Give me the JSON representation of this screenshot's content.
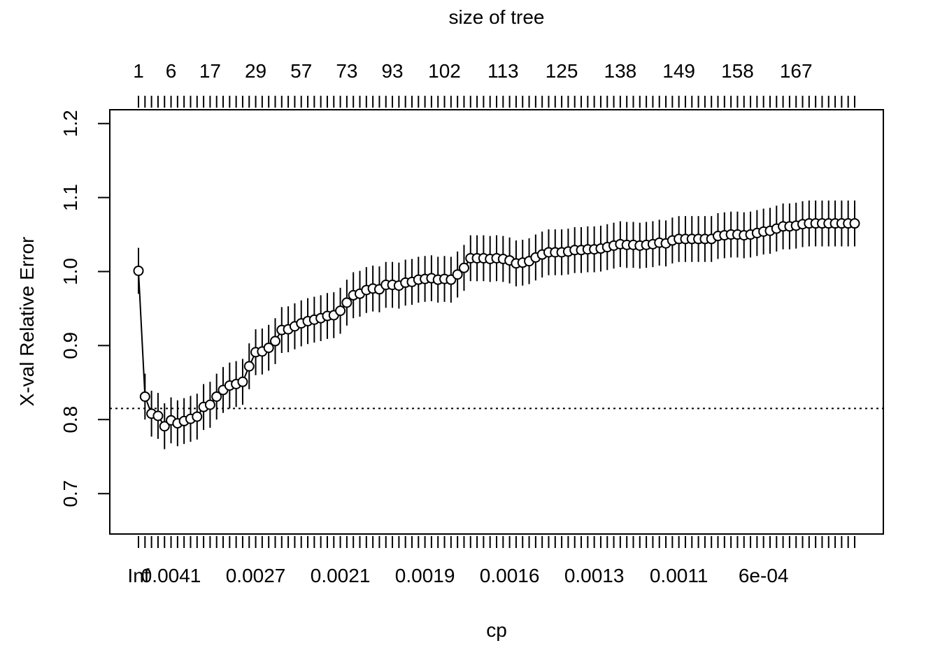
{
  "chart_data": {
    "type": "scatter",
    "title": "size of tree",
    "xlabel": "cp",
    "ylabel": "X-val Relative Error",
    "ylim": [
      0.65,
      1.2
    ],
    "y_ticks": [
      0.7,
      0.8,
      0.9,
      1.0,
      1.1,
      1.2
    ],
    "y_tick_labels": [
      "0.7",
      "0.8",
      "0.9",
      "1.0",
      "1.1",
      "1.2"
    ],
    "bottom_tick_labels": [
      {
        "index": 0,
        "label": "Inf"
      },
      {
        "index": 5,
        "label": "0.0041"
      },
      {
        "index": 18,
        "label": "0.0027"
      },
      {
        "index": 31,
        "label": "0.0021"
      },
      {
        "index": 44,
        "label": "0.0019"
      },
      {
        "index": 57,
        "label": "0.0016"
      },
      {
        "index": 70,
        "label": "0.0013"
      },
      {
        "index": 83,
        "label": "0.0011"
      },
      {
        "index": 96,
        "label": "6e-04"
      }
    ],
    "top_tick_labels": [
      {
        "index": 0,
        "label": "1"
      },
      {
        "index": 5,
        "label": "6"
      },
      {
        "index": 11,
        "label": "17"
      },
      {
        "index": 18,
        "label": "29"
      },
      {
        "index": 25,
        "label": "57"
      },
      {
        "index": 32,
        "label": "73"
      },
      {
        "index": 39,
        "label": "93"
      },
      {
        "index": 47,
        "label": "102"
      },
      {
        "index": 56,
        "label": "113"
      },
      {
        "index": 65,
        "label": "125"
      },
      {
        "index": 74,
        "label": "138"
      },
      {
        "index": 83,
        "label": "149"
      },
      {
        "index": 92,
        "label": "158"
      },
      {
        "index": 101,
        "label": "167"
      }
    ],
    "reference_line": {
      "y": 0.815,
      "style": "dotted"
    },
    "error_half_width": 0.031,
    "series": [
      {
        "values": [
          1.001,
          0.831,
          0.808,
          0.805,
          0.791,
          0.799,
          0.795,
          0.798,
          0.801,
          0.804,
          0.817,
          0.82,
          0.831,
          0.84,
          0.846,
          0.848,
          0.851,
          0.872,
          0.891,
          0.892,
          0.897,
          0.906,
          0.921,
          0.922,
          0.926,
          0.93,
          0.933,
          0.935,
          0.937,
          0.94,
          0.941,
          0.947,
          0.958,
          0.968,
          0.97,
          0.975,
          0.977,
          0.976,
          0.982,
          0.982,
          0.981,
          0.985,
          0.986,
          0.989,
          0.99,
          0.991,
          0.989,
          0.99,
          0.989,
          0.996,
          1.005,
          1.018,
          1.018,
          1.018,
          1.017,
          1.018,
          1.017,
          1.015,
          1.011,
          1.012,
          1.014,
          1.019,
          1.023,
          1.026,
          1.026,
          1.026,
          1.027,
          1.029,
          1.029,
          1.03,
          1.03,
          1.031,
          1.033,
          1.035,
          1.037,
          1.036,
          1.036,
          1.035,
          1.036,
          1.037,
          1.039,
          1.038,
          1.042,
          1.044,
          1.044,
          1.044,
          1.044,
          1.044,
          1.044,
          1.048,
          1.049,
          1.05,
          1.05,
          1.049,
          1.05,
          1.052,
          1.054,
          1.055,
          1.058,
          1.061,
          1.061,
          1.062,
          1.064,
          1.065,
          1.065,
          1.065,
          1.065,
          1.065,
          1.065,
          1.065,
          1.065
        ]
      }
    ]
  }
}
